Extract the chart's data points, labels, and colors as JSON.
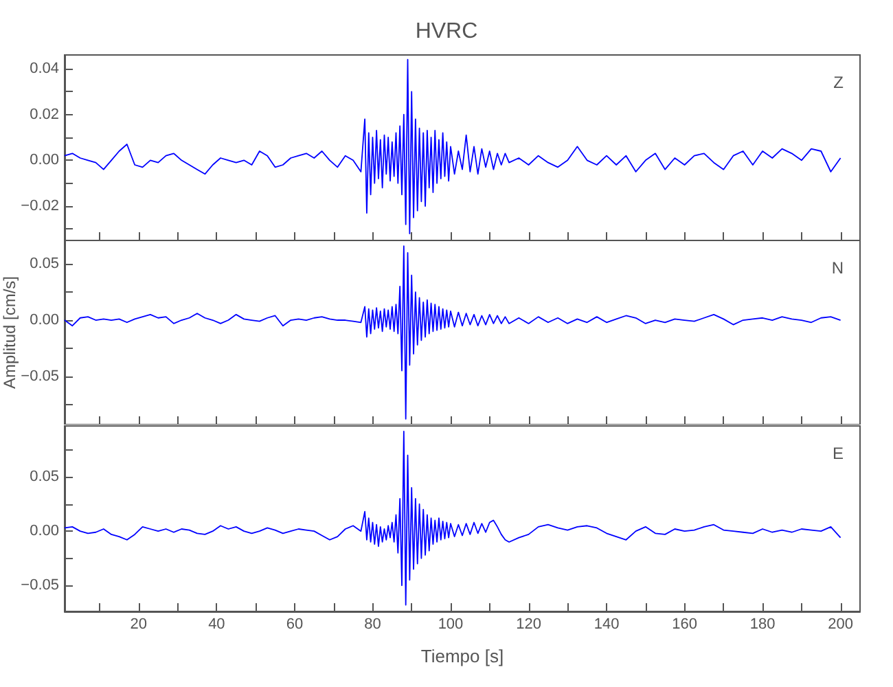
{
  "chart_data": [
    {
      "type": "line",
      "title": "HVRC",
      "annotations": [
        "Z"
      ],
      "tick_labels": "y",
      "grid": false,
      "x": [
        1,
        3,
        5,
        7,
        9,
        11,
        13,
        15,
        17,
        19,
        21,
        23,
        25,
        27,
        29,
        31,
        33,
        35,
        37,
        39,
        41,
        43,
        45,
        47,
        49,
        51,
        53,
        55,
        57,
        59,
        61,
        63,
        65,
        67,
        69,
        71,
        73,
        75,
        77,
        78,
        78.5,
        79,
        79.5,
        80,
        80.5,
        81,
        81.5,
        82,
        82.5,
        83,
        83.5,
        84,
        84.5,
        85,
        85.5,
        86,
        86.5,
        87,
        87.5,
        88,
        88.5,
        89,
        89.5,
        90,
        90.5,
        91,
        91.5,
        92,
        92.5,
        93,
        93.5,
        94,
        94.5,
        95,
        95.5,
        96,
        96.5,
        97,
        97.5,
        98,
        98.5,
        99,
        99.5,
        100,
        101,
        102,
        103,
        104,
        105,
        106,
        107,
        108,
        109,
        110,
        111,
        112,
        113,
        114,
        115,
        117.5,
        120,
        122.5,
        125,
        127.5,
        130,
        132.5,
        135,
        137.5,
        140,
        142.5,
        145,
        147.5,
        150,
        152.5,
        155,
        157.5,
        160,
        162.5,
        165,
        167.5,
        170,
        172.5,
        175,
        177.5,
        180,
        182.5,
        185,
        187.5,
        190,
        192.5,
        195,
        197.5,
        200
      ],
      "series": [
        {
          "color": "#0000ff",
          "values": [
            0.002,
            0.003,
            0.001,
            0.0,
            -0.001,
            -0.004,
            0.0,
            0.004,
            0.007,
            -0.002,
            -0.003,
            0.0,
            -0.001,
            0.002,
            0.003,
            0.0,
            -0.002,
            -0.004,
            -0.006,
            -0.002,
            0.001,
            0.0,
            -0.001,
            0.0,
            -0.002,
            0.004,
            0.002,
            -0.003,
            -0.002,
            0.001,
            0.002,
            0.003,
            0.001,
            0.004,
            0.0,
            -0.003,
            0.002,
            0.0,
            -0.005,
            0.018,
            -0.023,
            0.012,
            -0.015,
            0.01,
            -0.01,
            0.013,
            -0.008,
            0.009,
            -0.012,
            0.011,
            -0.006,
            0.01,
            -0.009,
            0.008,
            -0.007,
            0.012,
            -0.01,
            0.015,
            -0.015,
            0.02,
            -0.028,
            0.044,
            -0.032,
            0.03,
            -0.025,
            0.018,
            -0.022,
            0.014,
            -0.018,
            0.012,
            -0.02,
            0.013,
            -0.012,
            0.01,
            -0.014,
            0.013,
            -0.01,
            0.009,
            -0.008,
            0.012,
            -0.007,
            0.008,
            -0.009,
            0.006,
            -0.006,
            0.004,
            -0.004,
            0.011,
            -0.005,
            0.006,
            -0.006,
            0.005,
            -0.003,
            0.004,
            -0.004,
            0.003,
            -0.002,
            0.003,
            -0.001,
            0.001,
            -0.002,
            0.002,
            -0.001,
            -0.003,
            0.0,
            0.006,
            0.0,
            -0.002,
            0.002,
            -0.002,
            0.002,
            -0.005,
            0.0,
            0.003,
            -0.004,
            0.001,
            -0.002,
            0.002,
            0.003,
            -0.001,
            -0.004,
            0.002,
            0.004,
            -0.002,
            0.004,
            0.001,
            0.005,
            0.003,
            0.0,
            0.005,
            0.004,
            -0.005,
            0.001
          ]
        }
      ],
      "xlim": [
        1,
        205
      ],
      "xticks": [
        {
          "value": 10,
          "label": null
        },
        {
          "value": 20,
          "label": null
        },
        {
          "value": 30,
          "label": null
        },
        {
          "value": 40,
          "label": null
        },
        {
          "value": 50,
          "label": null
        },
        {
          "value": 60,
          "label": null
        },
        {
          "value": 70,
          "label": null
        },
        {
          "value": 80,
          "label": null
        },
        {
          "value": 90,
          "label": null
        },
        {
          "value": 100,
          "label": null
        },
        {
          "value": 110,
          "label": null
        },
        {
          "value": 120,
          "label": null
        },
        {
          "value": 130,
          "label": null
        },
        {
          "value": 140,
          "label": null
        },
        {
          "value": 150,
          "label": null
        },
        {
          "value": 160,
          "label": null
        },
        {
          "value": 170,
          "label": null
        },
        {
          "value": 180,
          "label": null
        },
        {
          "value": 190,
          "label": null
        },
        {
          "value": 200,
          "label": null
        }
      ],
      "ylim": [
        -0.035,
        0.046
      ],
      "yticks": [
        {
          "value": -0.03,
          "label": null
        },
        {
          "value": -0.02,
          "label": "−0.02"
        },
        {
          "value": -0.01,
          "label": null
        },
        {
          "value": 0,
          "label": "0.00"
        },
        {
          "value": 0.01,
          "label": null
        },
        {
          "value": 0.02,
          "label": "0.02"
        },
        {
          "value": 0.03,
          "label": null
        },
        {
          "value": 0.04,
          "label": "0.04"
        }
      ]
    },
    {
      "type": "line",
      "ylabel": "Amplitud [cm/s]",
      "annotations": [
        "N"
      ],
      "tick_labels": "y",
      "grid": false,
      "x": [
        1,
        3,
        5,
        7,
        9,
        11,
        13,
        15,
        17,
        19,
        21,
        23,
        25,
        27,
        29,
        31,
        33,
        35,
        37,
        39,
        41,
        43,
        45,
        47,
        49,
        51,
        53,
        55,
        57,
        59,
        61,
        63,
        65,
        67,
        69,
        71,
        73,
        75,
        77,
        78,
        78.5,
        79,
        79.5,
        80,
        80.5,
        81,
        81.5,
        82,
        82.5,
        83,
        83.5,
        84,
        84.5,
        85,
        85.5,
        86,
        86.5,
        87,
        87.5,
        88,
        88.5,
        89,
        89.5,
        90,
        90.5,
        91,
        91.5,
        92,
        92.5,
        93,
        93.5,
        94,
        94.5,
        95,
        95.5,
        96,
        96.5,
        97,
        97.5,
        98,
        98.5,
        99,
        99.5,
        100,
        101,
        102,
        103,
        104,
        105,
        106,
        107,
        108,
        109,
        110,
        111,
        112,
        113,
        114,
        115,
        117.5,
        120,
        122.5,
        125,
        127.5,
        130,
        132.5,
        135,
        137.5,
        140,
        142.5,
        145,
        147.5,
        150,
        152.5,
        155,
        157.5,
        160,
        162.5,
        165,
        167.5,
        170,
        172.5,
        175,
        177.5,
        180,
        182.5,
        185,
        187.5,
        190,
        192.5,
        195,
        197.5,
        200
      ],
      "series": [
        {
          "color": "#0000ff",
          "values": [
            0.0,
            -0.005,
            0.002,
            0.003,
            0.0,
            0.001,
            0.0,
            0.001,
            -0.002,
            0.001,
            0.003,
            0.005,
            0.002,
            0.003,
            -0.003,
            0.0,
            0.002,
            0.006,
            0.002,
            0.0,
            -0.003,
            0.0,
            0.005,
            0.001,
            0.0,
            -0.001,
            0.002,
            0.004,
            -0.005,
            0.0,
            0.001,
            0.0,
            0.002,
            0.003,
            0.001,
            0.0,
            0.0,
            -0.001,
            -0.002,
            0.012,
            -0.015,
            0.01,
            -0.012,
            0.009,
            -0.008,
            0.011,
            -0.007,
            0.008,
            -0.01,
            0.01,
            -0.006,
            0.009,
            -0.008,
            0.012,
            -0.01,
            0.014,
            -0.012,
            0.03,
            -0.045,
            0.066,
            -0.088,
            0.06,
            -0.04,
            0.04,
            -0.03,
            0.025,
            -0.022,
            0.02,
            -0.018,
            0.016,
            -0.015,
            0.018,
            -0.012,
            0.015,
            -0.01,
            0.014,
            -0.009,
            0.012,
            -0.008,
            0.01,
            -0.007,
            0.009,
            -0.006,
            0.008,
            -0.006,
            0.007,
            -0.005,
            0.006,
            -0.004,
            0.005,
            -0.005,
            0.004,
            -0.004,
            0.005,
            -0.003,
            0.004,
            -0.003,
            0.003,
            -0.003,
            0.002,
            -0.003,
            0.003,
            -0.002,
            0.002,
            -0.003,
            0.001,
            -0.002,
            0.003,
            -0.002,
            0.001,
            0.004,
            0.002,
            -0.003,
            0.0,
            -0.002,
            0.001,
            0.0,
            -0.001,
            0.002,
            0.005,
            0.001,
            -0.004,
            0.0,
            0.001,
            0.002,
            0.0,
            0.003,
            0.001,
            0.0,
            -0.002,
            0.002,
            0.003,
            0.0
          ]
        }
      ],
      "xlim": [
        1,
        205
      ],
      "xticks": [
        {
          "value": 10,
          "label": null
        },
        {
          "value": 20,
          "label": null
        },
        {
          "value": 30,
          "label": null
        },
        {
          "value": 40,
          "label": null
        },
        {
          "value": 50,
          "label": null
        },
        {
          "value": 60,
          "label": null
        },
        {
          "value": 70,
          "label": null
        },
        {
          "value": 80,
          "label": null
        },
        {
          "value": 90,
          "label": null
        },
        {
          "value": 100,
          "label": null
        },
        {
          "value": 110,
          "label": null
        },
        {
          "value": 120,
          "label": null
        },
        {
          "value": 130,
          "label": null
        },
        {
          "value": 140,
          "label": null
        },
        {
          "value": 150,
          "label": null
        },
        {
          "value": 160,
          "label": null
        },
        {
          "value": 170,
          "label": null
        },
        {
          "value": 180,
          "label": null
        },
        {
          "value": 190,
          "label": null
        },
        {
          "value": 200,
          "label": null
        }
      ],
      "ylim": [
        -0.093,
        0.071
      ],
      "yticks": [
        {
          "value": -0.075,
          "label": null
        },
        {
          "value": -0.05,
          "label": "−0.05"
        },
        {
          "value": -0.025,
          "label": null
        },
        {
          "value": 0,
          "label": "0.00"
        },
        {
          "value": 0.025,
          "label": null
        },
        {
          "value": 0.05,
          "label": "0.05"
        }
      ]
    },
    {
      "type": "line",
      "xlabel": "Tiempo [s]",
      "annotations": [
        "E"
      ],
      "grid": false,
      "x": [
        1,
        3,
        5,
        7,
        9,
        11,
        13,
        15,
        17,
        19,
        21,
        23,
        25,
        27,
        29,
        31,
        33,
        35,
        37,
        39,
        41,
        43,
        45,
        47,
        49,
        51,
        53,
        55,
        57,
        59,
        61,
        63,
        65,
        67,
        69,
        71,
        73,
        75,
        77,
        78,
        78.5,
        79,
        79.5,
        80,
        80.5,
        81,
        81.5,
        82,
        82.5,
        83,
        83.5,
        84,
        84.5,
        85,
        85.5,
        86,
        86.5,
        87,
        87.5,
        88,
        88.5,
        89,
        89.5,
        90,
        90.5,
        91,
        91.5,
        92,
        92.5,
        93,
        93.5,
        94,
        94.5,
        95,
        95.5,
        96,
        96.5,
        97,
        97.5,
        98,
        98.5,
        99,
        99.5,
        100,
        101,
        102,
        103,
        104,
        105,
        106,
        107,
        108,
        109,
        110,
        111,
        112,
        113,
        114,
        115,
        117.5,
        120,
        122.5,
        125,
        127.5,
        130,
        132.5,
        135,
        137.5,
        140,
        142.5,
        145,
        147.5,
        150,
        152.5,
        155,
        157.5,
        160,
        162.5,
        165,
        167.5,
        170,
        172.5,
        175,
        177.5,
        180,
        182.5,
        185,
        187.5,
        190,
        192.5,
        195,
        197.5,
        200
      ],
      "series": [
        {
          "color": "#0000ff",
          "values": [
            0.003,
            0.004,
            0.0,
            -0.002,
            -0.001,
            0.002,
            -0.003,
            -0.005,
            -0.008,
            -0.003,
            0.004,
            0.002,
            0.0,
            0.002,
            -0.001,
            0.002,
            0.001,
            -0.002,
            -0.003,
            0.0,
            0.005,
            0.002,
            0.004,
            0.0,
            -0.002,
            0.0,
            0.003,
            0.001,
            -0.002,
            0.0,
            0.002,
            0.001,
            0.0,
            -0.004,
            -0.008,
            -0.005,
            0.002,
            0.005,
            0.0,
            0.018,
            -0.008,
            0.012,
            -0.01,
            0.008,
            -0.012,
            0.006,
            -0.014,
            0.004,
            -0.01,
            0.002,
            -0.008,
            0.005,
            -0.006,
            0.008,
            -0.01,
            0.015,
            -0.02,
            0.03,
            -0.05,
            0.092,
            -0.068,
            0.07,
            -0.045,
            0.04,
            -0.035,
            0.03,
            -0.03,
            0.025,
            -0.025,
            0.02,
            -0.022,
            0.015,
            -0.018,
            0.012,
            -0.012,
            0.01,
            -0.01,
            0.012,
            -0.008,
            0.009,
            -0.007,
            0.008,
            -0.006,
            0.007,
            -0.005,
            0.006,
            -0.004,
            0.007,
            -0.003,
            0.008,
            -0.002,
            0.007,
            -0.001,
            0.008,
            0.01,
            0.004,
            -0.003,
            -0.008,
            -0.01,
            -0.006,
            -0.003,
            0.004,
            0.006,
            0.003,
            0.001,
            0.004,
            0.005,
            0.003,
            -0.002,
            -0.005,
            -0.008,
            0.0,
            0.004,
            -0.002,
            -0.003,
            0.002,
            0.0,
            0.001,
            0.004,
            0.006,
            0.001,
            0.0,
            -0.001,
            -0.002,
            0.002,
            -0.001,
            0.001,
            -0.001,
            0.002,
            0.001,
            0.0,
            0.004,
            -0.006
          ]
        }
      ],
      "xlim": [
        1,
        205
      ],
      "xticks": [
        {
          "value": 10,
          "label": null
        },
        {
          "value": 20,
          "label": "20"
        },
        {
          "value": 30,
          "label": null
        },
        {
          "value": 40,
          "label": "40"
        },
        {
          "value": 50,
          "label": null
        },
        {
          "value": 60,
          "label": "60"
        },
        {
          "value": 70,
          "label": null
        },
        {
          "value": 80,
          "label": "80"
        },
        {
          "value": 90,
          "label": null
        },
        {
          "value": 100,
          "label": "100"
        },
        {
          "value": 110,
          "label": null
        },
        {
          "value": 120,
          "label": "120"
        },
        {
          "value": 130,
          "label": null
        },
        {
          "value": 140,
          "label": "140"
        },
        {
          "value": 150,
          "label": null
        },
        {
          "value": 160,
          "label": "160"
        },
        {
          "value": 170,
          "label": null
        },
        {
          "value": 180,
          "label": "180"
        },
        {
          "value": 190,
          "label": null
        },
        {
          "value": 200,
          "label": "200"
        }
      ],
      "ylim": [
        -0.074,
        0.097
      ],
      "yticks": [
        {
          "value": -0.05,
          "label": "−0.05"
        },
        {
          "value": -0.025,
          "label": null
        },
        {
          "value": 0,
          "label": "0.00"
        },
        {
          "value": 0.025,
          "label": null
        },
        {
          "value": 0.05,
          "label": "0.05"
        },
        {
          "value": 0.075,
          "label": null
        }
      ]
    }
  ]
}
